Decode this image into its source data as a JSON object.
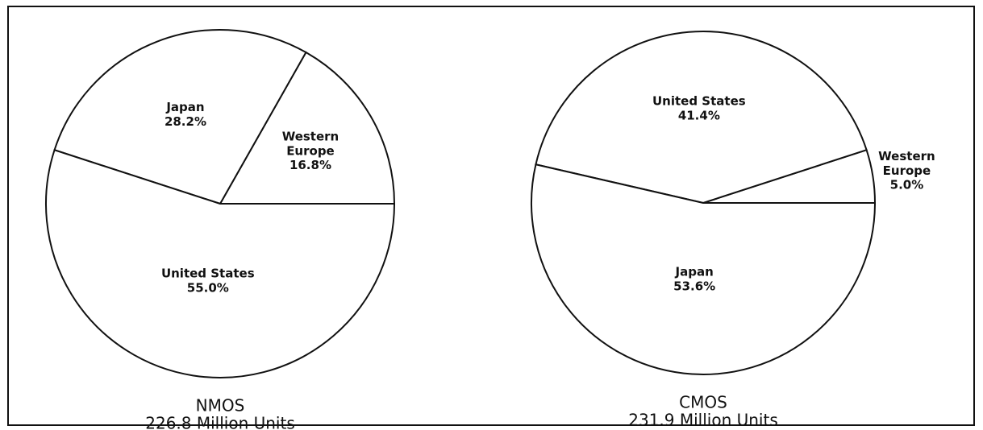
{
  "chart_data": [
    {
      "type": "pie",
      "title": "NMOS",
      "subtitle": "226.8 Million Units",
      "categories": [
        "Western Europe",
        "Japan",
        "United States"
      ],
      "values": [
        16.8,
        28.2,
        55.0
      ],
      "value_labels": [
        "16.8%",
        "28.2%",
        "55.0%"
      ]
    },
    {
      "type": "pie",
      "title": "CMOS",
      "subtitle": "231.9 Million Units",
      "categories": [
        "Western Europe",
        "United States",
        "Japan"
      ],
      "values": [
        5.0,
        41.4,
        53.6
      ],
      "value_labels": [
        "5.0%",
        "41.4%",
        "53.6%"
      ]
    }
  ]
}
